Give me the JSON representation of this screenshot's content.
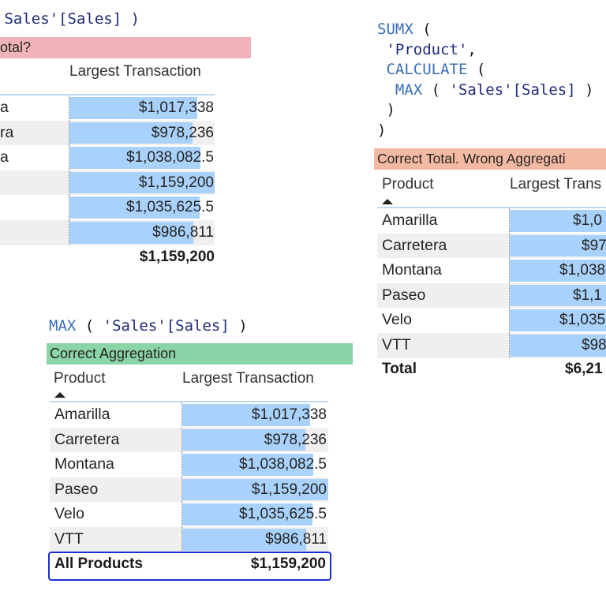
{
  "colors": {
    "bar": "#a8d1fb",
    "wrong_total": "#f0b4b8",
    "correct_total_wrong_agg": "#f3b9a3",
    "correct_agg": "#8bd4a7",
    "focus_border": "#1a2fd6"
  },
  "top_left": {
    "code": {
      "line1": " Sales'[Sales] )"
    },
    "title": "otal?",
    "header_value": "Largest Transaction",
    "rows": [
      {
        "product": "a",
        "value": "$1,017,338",
        "amount": 1017338
      },
      {
        "product": "ra",
        "value": "$978,236",
        "amount": 978236
      },
      {
        "product": "a",
        "value": "$1,038,082.5",
        "amount": 1038082.5
      },
      {
        "product": "",
        "value": "$1,159,200",
        "amount": 1159200
      },
      {
        "product": "",
        "value": "$1,035,625.5",
        "amount": 1035625.5
      },
      {
        "product": "",
        "value": "$986,811",
        "amount": 986811
      }
    ],
    "total_value": "$1,159,200"
  },
  "right": {
    "code": {
      "l1_kw": "SUMX",
      "l1_rest": " (",
      "l2_str": " 'Product'",
      "l2_rest": ",",
      "l3_kw": " CALCULATE",
      "l3_rest": " (",
      "l4_kw": "  MAX",
      "l4_mid": " ( ",
      "l4_str": "'Sales'[Sales]",
      "l4_rest": " )",
      "l5": " )",
      "l6": ")"
    },
    "title": "Correct Total. Wrong Aggregati",
    "header_product": "Product",
    "header_value": "Largest Trans",
    "rows": [
      {
        "product": "Amarilla",
        "value": "$1,0",
        "amount": 1017338
      },
      {
        "product": "Carretera",
        "value": "$97",
        "amount": 978236
      },
      {
        "product": "Montana",
        "value": "$1,038",
        "amount": 1038082.5
      },
      {
        "product": "Paseo",
        "value": "$1,1",
        "amount": 1159200
      },
      {
        "product": "Velo",
        "value": "$1,035",
        "amount": 1035625.5
      },
      {
        "product": "VTT",
        "value": "$98",
        "amount": 986811
      }
    ],
    "total_label": "Total",
    "total_value": "$6,21"
  },
  "bottom": {
    "code": {
      "kw": "MAX",
      "mid": " ( ",
      "str": "'Sales'[Sales]",
      "rest": " )"
    },
    "title": "Correct Aggregation",
    "header_product": "Product",
    "header_value": "Largest Transaction",
    "rows": [
      {
        "product": "Amarilla",
        "value": "$1,017,338",
        "amount": 1017338
      },
      {
        "product": "Carretera",
        "value": "$978,236",
        "amount": 978236
      },
      {
        "product": "Montana",
        "value": "$1,038,082.5",
        "amount": 1038082.5
      },
      {
        "product": "Paseo",
        "value": "$1,159,200",
        "amount": 1159200
      },
      {
        "product": "Velo",
        "value": "$1,035,625.5",
        "amount": 1035625.5
      },
      {
        "product": "VTT",
        "value": "$986,811",
        "amount": 986811
      }
    ],
    "total_label": "All Products",
    "total_value": "$1,159,200"
  }
}
